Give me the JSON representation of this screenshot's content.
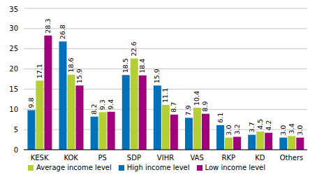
{
  "chart_data": {
    "type": "bar",
    "categories": [
      "KESK",
      "KOK",
      "PS",
      "SDP",
      "VIHR",
      "VAS",
      "RKP",
      "KD",
      "Others"
    ],
    "series": [
      {
        "name": "High income level",
        "color": "#0072bc",
        "values": [
          9.8,
          26.8,
          8.2,
          18.5,
          15.9,
          7.9,
          6.1,
          3.7,
          3.0
        ],
        "value_labels": [
          "9.8",
          "26.8",
          "8.2",
          "18.5",
          "15.9",
          "7.9",
          "6.1",
          "3.7",
          "3.0"
        ]
      },
      {
        "name": "Average income level",
        "color": "#b5cf32",
        "values": [
          17.1,
          18.6,
          9.3,
          22.6,
          11.1,
          10.4,
          3.0,
          4.5,
          3.4
        ],
        "value_labels": [
          "17.1",
          "18.6",
          "9.3",
          "22.6",
          "11.1",
          "10.4",
          "3.0",
          "4.5",
          "3.4"
        ]
      },
      {
        "name": "Low income level",
        "color": "#a3007d",
        "values": [
          28.3,
          15.9,
          9.4,
          18.4,
          8.7,
          8.9,
          3.2,
          4.2,
          3.0
        ],
        "value_labels": [
          "28.3",
          "15.9",
          "9.4",
          "18.4",
          "8.7",
          "8.9",
          "3.2",
          "4.2",
          "3.0"
        ]
      }
    ],
    "ylim": [
      0,
      35
    ],
    "yticks": [
      0,
      5,
      10,
      15,
      20,
      25,
      30,
      35
    ],
    "grid": true,
    "data_labels": true,
    "legend": "bottom"
  }
}
